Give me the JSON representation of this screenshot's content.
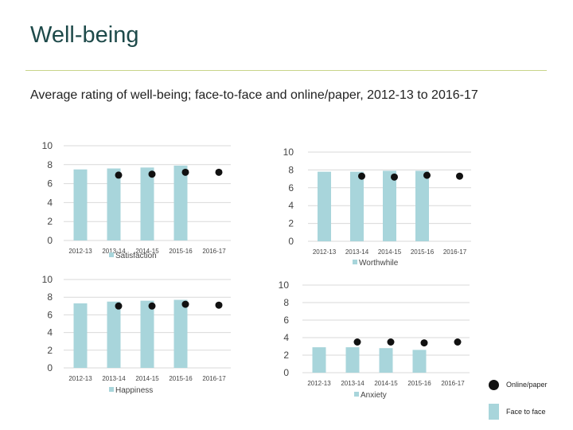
{
  "title": "Well-being",
  "subtitle": "Average rating of well-being; face-to-face and online/paper, 2012-13 to 2016-17",
  "legend": {
    "online": "Online/paper",
    "face": "Face to face"
  },
  "colors": {
    "bar": "#a8d5db",
    "dot": "#111111",
    "grid": "#d9d9d9"
  },
  "chart_data": [
    {
      "type": "bar",
      "categories": [
        "2012-13",
        "2013-14",
        "2014-15",
        "2015-16",
        "2016-17"
      ],
      "series": [
        {
          "name": "Satisfaction",
          "values": [
            7.5,
            7.6,
            7.7,
            7.9,
            null
          ]
        },
        {
          "name": "",
          "values": [
            null,
            6.9,
            7.0,
            7.2,
            7.2
          ]
        }
      ],
      "ylim": [
        0,
        10
      ],
      "yticks": [
        0,
        2,
        4,
        6,
        8,
        10
      ],
      "legend_label": "Satisfaction"
    },
    {
      "type": "bar",
      "categories": [
        "2012-13",
        "2013-14",
        "2014-15",
        "2015-16",
        "2016-17"
      ],
      "series": [
        {
          "name": "Worthwhile",
          "values": [
            7.8,
            7.8,
            7.9,
            7.9,
            null
          ]
        },
        {
          "name": "",
          "values": [
            null,
            7.3,
            7.2,
            7.4,
            7.3
          ]
        }
      ],
      "ylim": [
        0,
        10
      ],
      "yticks": [
        0,
        2,
        4,
        6,
        8,
        10
      ],
      "legend_label": "Worthwhile"
    },
    {
      "type": "bar",
      "categories": [
        "2012-13",
        "2013-14",
        "2014-15",
        "2015-16",
        "2016-17"
      ],
      "series": [
        {
          "name": "Happiness",
          "values": [
            7.3,
            7.5,
            7.6,
            7.7,
            null
          ]
        },
        {
          "name": "",
          "values": [
            null,
            7.0,
            7.0,
            7.2,
            7.1
          ]
        }
      ],
      "ylim": [
        0,
        10
      ],
      "yticks": [
        0,
        2,
        4,
        6,
        8,
        10
      ],
      "legend_label": "Happiness"
    },
    {
      "type": "bar",
      "categories": [
        "2012-13",
        "2013-14",
        "2014-15",
        "2015-16",
        "2016-17"
      ],
      "series": [
        {
          "name": "Anxiety",
          "values": [
            2.9,
            2.9,
            2.8,
            2.6,
            null
          ]
        },
        {
          "name": "",
          "values": [
            null,
            3.5,
            3.5,
            3.4,
            3.5
          ]
        }
      ],
      "ylim": [
        0,
        10
      ],
      "yticks": [
        0,
        2,
        4,
        6,
        8,
        10
      ],
      "legend_label": "Anxiety"
    }
  ]
}
